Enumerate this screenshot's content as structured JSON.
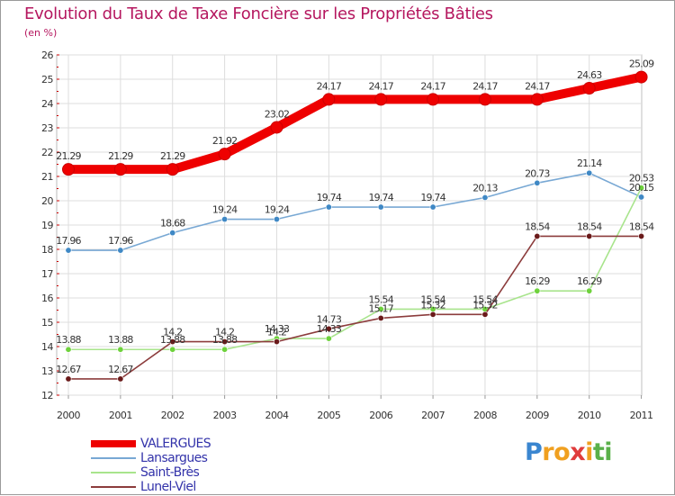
{
  "chart_data": {
    "type": "line",
    "title": "Evolution du Taux de Taxe Foncière sur les Propriétés Bâties",
    "unit_label": "(en %)",
    "x": [
      "2000",
      "2001",
      "2002",
      "2003",
      "2004",
      "2005",
      "2006",
      "2007",
      "2008",
      "2009",
      "2010",
      "2011"
    ],
    "ylim": [
      12,
      26
    ],
    "yticks": [
      "12",
      "13",
      "14",
      "15",
      "16",
      "17",
      "18",
      "19",
      "20",
      "21",
      "22",
      "23",
      "24",
      "25",
      "26"
    ],
    "grid": true,
    "series": [
      {
        "name": "VALERGUES",
        "color": "#ee0000",
        "marker": "#ee0000",
        "thick": true,
        "values": [
          21.29,
          21.29,
          21.29,
          21.92,
          23.02,
          24.17,
          24.17,
          24.17,
          24.17,
          24.17,
          24.63,
          25.09
        ],
        "labels": [
          "21.29",
          "21.29",
          "21.29",
          "21.92",
          "23.02",
          "24.17",
          "24.17",
          "24.17",
          "24.17",
          "24.17",
          "24.63",
          "25.09"
        ]
      },
      {
        "name": "Lansargues",
        "color": "#78a8d4",
        "marker": "#3f88c5",
        "thick": false,
        "values": [
          17.96,
          17.96,
          18.68,
          19.24,
          19.24,
          19.74,
          19.74,
          19.74,
          20.13,
          20.73,
          21.14,
          20.15
        ],
        "labels": [
          "17.96",
          "17.96",
          "18.68",
          "19.24",
          "19.24",
          "19.74",
          "19.74",
          "19.74",
          "20.13",
          "20.73",
          "21.14",
          "20.15"
        ]
      },
      {
        "name": "Saint-Brès",
        "color": "#a8e48c",
        "marker": "#6ed23c",
        "thick": false,
        "values": [
          13.88,
          13.88,
          13.88,
          13.88,
          14.33,
          14.33,
          15.54,
          15.54,
          15.54,
          16.29,
          16.29,
          20.53
        ],
        "labels": [
          "13.88",
          "13.88",
          "13.88",
          "13.88",
          "14.33",
          "14.33",
          "15.54",
          "15.54",
          "15.54",
          "16.29",
          "16.29",
          "20.53"
        ]
      },
      {
        "name": "Lunel-Viel",
        "color": "#8c3c3c",
        "marker": "#6a1a1a",
        "thick": false,
        "values": [
          12.67,
          12.67,
          14.2,
          14.2,
          14.2,
          14.73,
          15.17,
          15.32,
          15.32,
          18.54,
          18.54,
          18.54
        ],
        "labels": [
          "12.67",
          "12.67",
          "14.2",
          "14.2",
          "14.2",
          "14.73",
          "15.17",
          "15.32",
          "15.32",
          "18.54",
          "18.54",
          "18.54"
        ]
      }
    ]
  },
  "legend": {
    "items": [
      {
        "label": "VALERGUES",
        "color": "#ee0000"
      },
      {
        "label": "Lansargues",
        "color": "#78a8d4"
      },
      {
        "label": "Saint-Brès",
        "color": "#a8e48c"
      },
      {
        "label": "Lunel-Viel",
        "color": "#8c3c3c"
      }
    ]
  },
  "logo": {
    "letters": [
      "P",
      "r",
      "o",
      "x",
      "i",
      "t",
      "i"
    ],
    "colors": [
      "#3a86d0",
      "#f0a020",
      "#f0a020",
      "#e03c3c",
      "#f0a020",
      "#5ab04a",
      "#5ab04a"
    ]
  }
}
